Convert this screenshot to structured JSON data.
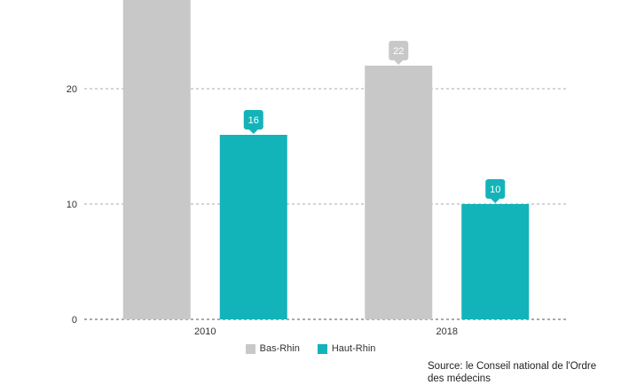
{
  "chart_data": {
    "type": "bar",
    "categories": [
      "2010",
      "2018"
    ],
    "series": [
      {
        "name": "Bas-Rhin",
        "values": [
          29,
          22
        ],
        "color": "#c8c8c8"
      },
      {
        "name": "Haut-Rhin",
        "values": [
          16,
          10
        ],
        "color": "#13b3ba"
      }
    ],
    "data_labels": [
      {
        "series": 0,
        "index": 1,
        "text": "22"
      },
      {
        "series": 1,
        "index": 0,
        "text": "16"
      },
      {
        "series": 1,
        "index": 1,
        "text": "10"
      }
    ],
    "y_ticks": [
      "0",
      "10",
      "20"
    ],
    "ylim": [
      0,
      28
    ],
    "grid": true,
    "legend_position": "bottom-center"
  },
  "legend": {
    "items": [
      {
        "label": "Bas-Rhin",
        "color": "#c8c8c8"
      },
      {
        "label": "Haut-Rhin",
        "color": "#13b3ba"
      }
    ]
  },
  "source": "Source: le Conseil national de l'Ordre des médecins"
}
